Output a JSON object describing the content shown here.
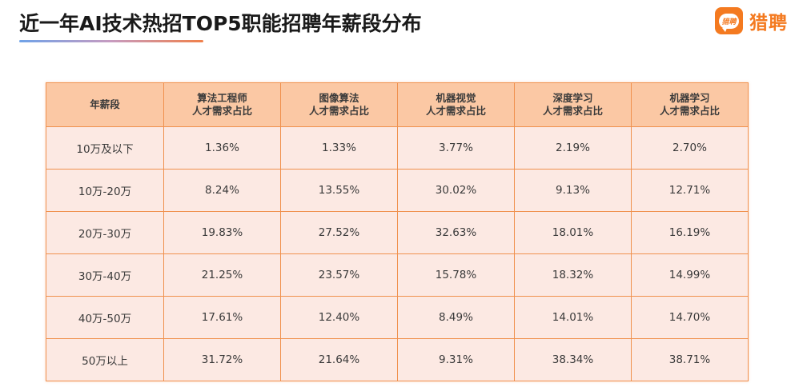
{
  "header": {
    "title": "近一年AI技术热招TOP5职能招聘年薪段分布",
    "underline_gradient": [
      "#6fa2e8",
      "#f0804a"
    ]
  },
  "logo": {
    "icon_text": "猎聘",
    "text": "猎聘",
    "color": "#f47a20"
  },
  "table": {
    "header_bg": "#fbc8a4",
    "cell_bg": "#fce9e3",
    "border_color": "#f0914e",
    "columns": [
      {
        "line1": "年薪段",
        "line2": ""
      },
      {
        "line1": "算法工程师",
        "line2": "人才需求占比"
      },
      {
        "line1": "图像算法",
        "line2": "人才需求占比"
      },
      {
        "line1": "机器视觉",
        "line2": "人才需求占比"
      },
      {
        "line1": "深度学习",
        "line2": "人才需求占比"
      },
      {
        "line1": "机器学习",
        "line2": "人才需求占比"
      }
    ],
    "rows": [
      [
        "10万及以下",
        "1.36%",
        "1.33%",
        "3.77%",
        "2.19%",
        "2.70%"
      ],
      [
        "10万-20万",
        "8.24%",
        "13.55%",
        "30.02%",
        "9.13%",
        "12.71%"
      ],
      [
        "20万-30万",
        "19.83%",
        "27.52%",
        "32.63%",
        "18.01%",
        "16.19%"
      ],
      [
        "30万-40万",
        "21.25%",
        "23.57%",
        "15.78%",
        "18.32%",
        "14.99%"
      ],
      [
        "40万-50万",
        "17.61%",
        "12.40%",
        "8.49%",
        "14.01%",
        "14.70%"
      ],
      [
        "50万以上",
        "31.72%",
        "21.64%",
        "9.31%",
        "38.34%",
        "38.71%"
      ]
    ]
  },
  "chart_data": {
    "type": "table",
    "title": "近一年AI技术热招TOP5职能招聘年薪段分布",
    "row_header": "年薪段",
    "categories": [
      "10万及以下",
      "10万-20万",
      "20万-30万",
      "30万-40万",
      "40万-50万",
      "50万以上"
    ],
    "unit": "%",
    "series": [
      {
        "name": "算法工程师人才需求占比",
        "values": [
          1.36,
          8.24,
          19.83,
          21.25,
          17.61,
          31.72
        ]
      },
      {
        "name": "图像算法人才需求占比",
        "values": [
          1.33,
          13.55,
          27.52,
          23.57,
          12.4,
          21.64
        ]
      },
      {
        "name": "机器视觉人才需求占比",
        "values": [
          3.77,
          30.02,
          32.63,
          15.78,
          8.49,
          9.31
        ]
      },
      {
        "name": "深度学习人才需求占比",
        "values": [
          2.19,
          9.13,
          18.01,
          18.32,
          14.01,
          38.34
        ]
      },
      {
        "name": "机器学习人才需求占比",
        "values": [
          2.7,
          12.71,
          16.19,
          14.99,
          14.7,
          38.71
        ]
      }
    ]
  }
}
